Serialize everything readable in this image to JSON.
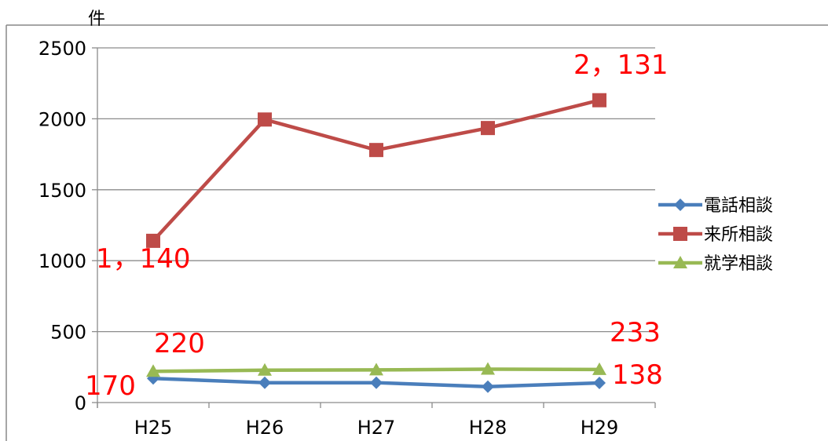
{
  "chart_data": {
    "type": "line",
    "title": "",
    "ylabel": "件",
    "xlabel": "",
    "categories": [
      "H25",
      "H26",
      "H27",
      "H28",
      "H29"
    ],
    "ylim": [
      0,
      2500
    ],
    "yticks": [
      0,
      500,
      1000,
      1500,
      2000,
      2500
    ],
    "grid": "horizontal",
    "legend_position": "right",
    "series": [
      {
        "name": "電話相談",
        "values": [
          170,
          140,
          140,
          112,
          138
        ],
        "color": "#4a7ebb",
        "marker": "diamond"
      },
      {
        "name": "来所相談",
        "values": [
          1140,
          1995,
          1780,
          1935,
          2131
        ],
        "color": "#be4b48",
        "marker": "square"
      },
      {
        "name": "就学相談",
        "values": [
          220,
          228,
          230,
          235,
          233
        ],
        "color": "#98b954",
        "marker": "triangle"
      }
    ],
    "annotations": [
      {
        "text": "1，140"
      },
      {
        "text": "2，131"
      },
      {
        "text": "220"
      },
      {
        "text": "233"
      },
      {
        "text": "170"
      },
      {
        "text": "138"
      }
    ],
    "annotation_color": "#ff0000"
  }
}
